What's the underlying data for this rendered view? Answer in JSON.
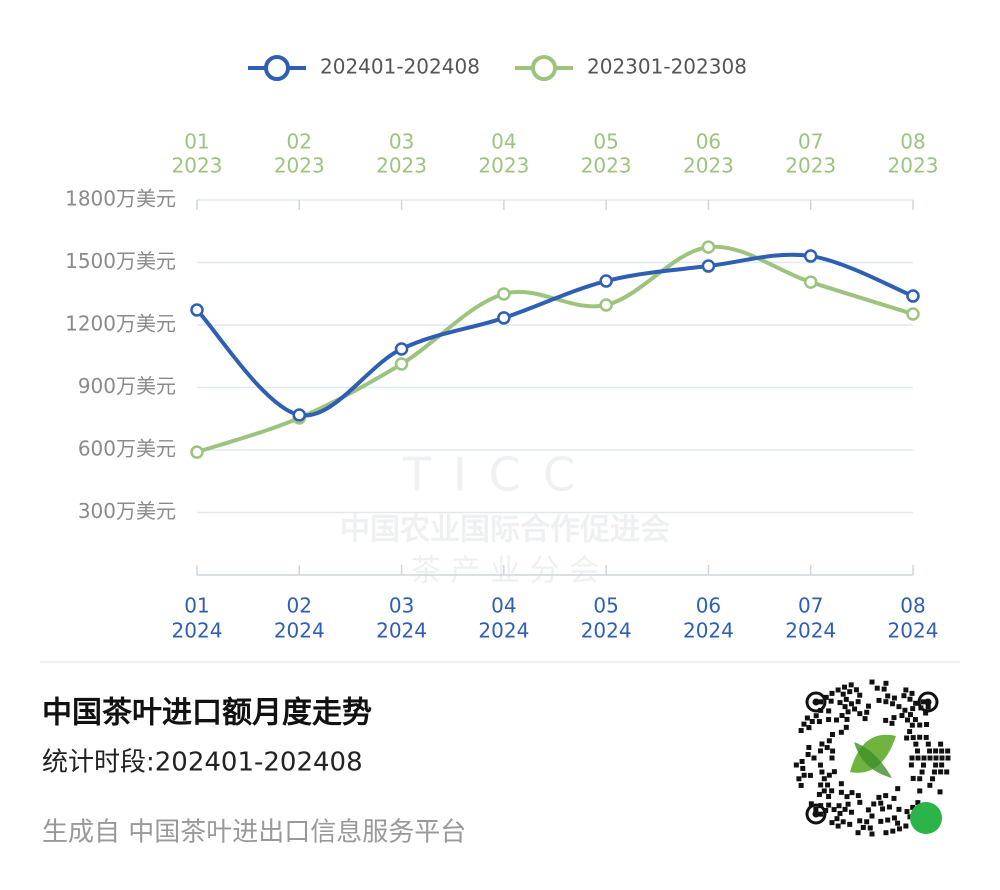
{
  "chart_data": {
    "type": "line",
    "categories": [
      "01",
      "02",
      "03",
      "04",
      "05",
      "06",
      "07",
      "08"
    ],
    "top_axis_year": "2023",
    "bottom_axis_year": "2024",
    "series": [
      {
        "name": "202401-202408",
        "color": "#2f5fb3",
        "axis_position": "bottom",
        "values": [
          1272,
          768,
          1085,
          1234,
          1411,
          1483,
          1531,
          1339
        ]
      },
      {
        "name": "202301-202308",
        "color": "#9cc47e",
        "axis_position": "top",
        "values": [
          590,
          754,
          1013,
          1349,
          1296,
          1574,
          1406,
          1253
        ]
      }
    ],
    "ylim": [
      0,
      1800
    ],
    "yticks": [
      {
        "value": 300,
        "label": "300万美元"
      },
      {
        "value": 600,
        "label": "600万美元"
      },
      {
        "value": 900,
        "label": "900万美元"
      },
      {
        "value": 1200,
        "label": "1200万美元"
      },
      {
        "value": 1500,
        "label": "1500万美元"
      },
      {
        "value": 1800,
        "label": "1800万美元"
      }
    ],
    "grid": true,
    "smooth": true
  },
  "watermark": {
    "logo_text": "TICC",
    "line1": "中国农业国际合作促进会",
    "line2": "茶 产 业 分 会"
  },
  "footer": {
    "title": "中国茶叶进口额月度走势",
    "period": "统计时段:202401-202408",
    "source": "生成自 中国茶叶进出口信息服务平台"
  }
}
